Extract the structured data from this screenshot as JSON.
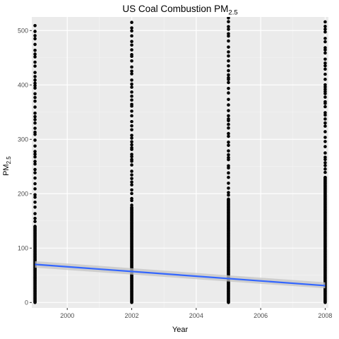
{
  "chart_data": {
    "type": "scatter",
    "title": "US Coal Combustion PM",
    "title_subscript": "2.5",
    "xlabel": "Year",
    "ylabel": "PM",
    "ylabel_subscript": "2.5",
    "xlim": [
      1998.9,
      2008.1
    ],
    "ylim": [
      -10,
      525
    ],
    "x_ticks": [
      2000,
      2002,
      2004,
      2006,
      2008
    ],
    "y_ticks": [
      0,
      100,
      200,
      300,
      400,
      500
    ],
    "grid": true,
    "legend": "none",
    "colors": {
      "panel_background": "#ebebeb",
      "grid_major": "#ffffff",
      "points": "#000000",
      "trend_line": "#3366ff",
      "confidence_band": "#c4c4c4",
      "tick_label": "#4d4d4d"
    },
    "series": [
      {
        "type": "points",
        "columns": [
          {
            "x": 1999,
            "y_min": 0,
            "y_max": 515,
            "dense_up_to": 140
          },
          {
            "x": 2002,
            "y_min": 0,
            "y_max": 525,
            "dense_up_to": 175
          },
          {
            "x": 2005,
            "y_min": 0,
            "y_max": 525,
            "dense_up_to": 190
          },
          {
            "x": 2008,
            "y_min": 0,
            "y_max": 525,
            "dense_up_to": 230
          }
        ]
      },
      {
        "type": "linear_fit",
        "x": [
          1999,
          2008
        ],
        "y": [
          70,
          31
        ],
        "ci_low": [
          64,
          26
        ],
        "ci_high": [
          76,
          37
        ]
      }
    ]
  }
}
